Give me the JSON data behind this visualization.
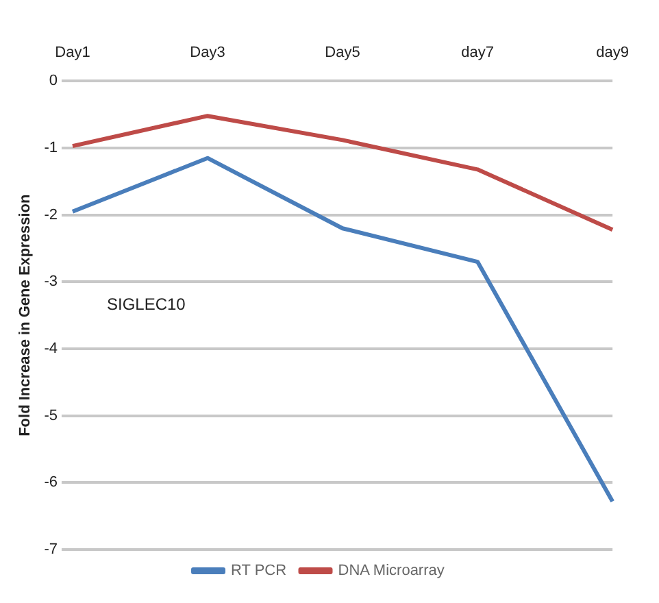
{
  "chart_data": {
    "type": "line",
    "ylabel": "Fold Increase in Gene Expression",
    "categories": [
      "Day1",
      "Day3",
      "Day5",
      "day7",
      "day9"
    ],
    "series": [
      {
        "name": "RT PCR",
        "color": "#4a7ebb",
        "values": [
          -1.95,
          -1.15,
          -2.2,
          -2.7,
          -6.28
        ]
      },
      {
        "name": "DNA Microarray",
        "color": "#be4b48",
        "values": [
          -0.97,
          -0.52,
          -0.88,
          -1.32,
          -2.22
        ]
      }
    ],
    "ylim": [
      -7,
      0
    ],
    "yticks": [
      -7,
      -6,
      -5,
      -4,
      -3,
      -2,
      -1,
      0
    ],
    "grid": "y",
    "legend": "bottom",
    "marker": "none",
    "line_style": "solid",
    "annotations": [
      "SIGLEC10"
    ]
  }
}
